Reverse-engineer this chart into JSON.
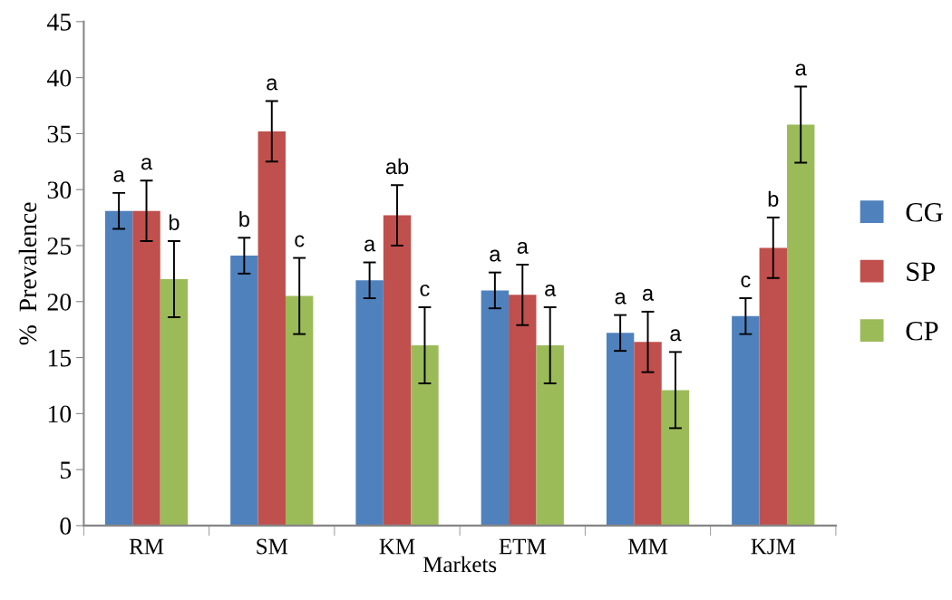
{
  "chart_data": {
    "type": "bar",
    "xlabel": "Markets",
    "ylabel": "%  Prevalence",
    "categories": [
      "RM",
      "SM",
      "KM",
      "ETM",
      "MM",
      "KJM"
    ],
    "series": [
      {
        "name": "CG",
        "color": "#4f81bd",
        "values": [
          28.1,
          24.1,
          21.9,
          21.0,
          17.2,
          18.7
        ],
        "errors": [
          1.6,
          1.6,
          1.6,
          1.6,
          1.6,
          1.6
        ],
        "value_labels": [
          "a",
          "b",
          "a",
          "a",
          "a",
          "c"
        ]
      },
      {
        "name": "SP",
        "color": "#c0504d",
        "values": [
          28.1,
          35.2,
          27.7,
          20.6,
          16.4,
          24.8
        ],
        "errors": [
          2.7,
          2.7,
          2.7,
          2.7,
          2.7,
          2.7
        ],
        "value_labels": [
          "a",
          "a",
          "ab",
          "a",
          "a",
          "b"
        ]
      },
      {
        "name": "CP",
        "color": "#9bbb59",
        "values": [
          22.0,
          20.5,
          16.1,
          16.1,
          12.1,
          35.8
        ],
        "errors": [
          3.4,
          3.4,
          3.4,
          3.4,
          3.4,
          3.4
        ],
        "value_labels": [
          "b",
          "c",
          "c",
          "a",
          "a",
          "a"
        ]
      }
    ],
    "ylim": [
      0,
      45
    ],
    "yticks": [
      0,
      5,
      10,
      15,
      20,
      25,
      30,
      35,
      40,
      45
    ],
    "grid": false,
    "legend": "right"
  }
}
